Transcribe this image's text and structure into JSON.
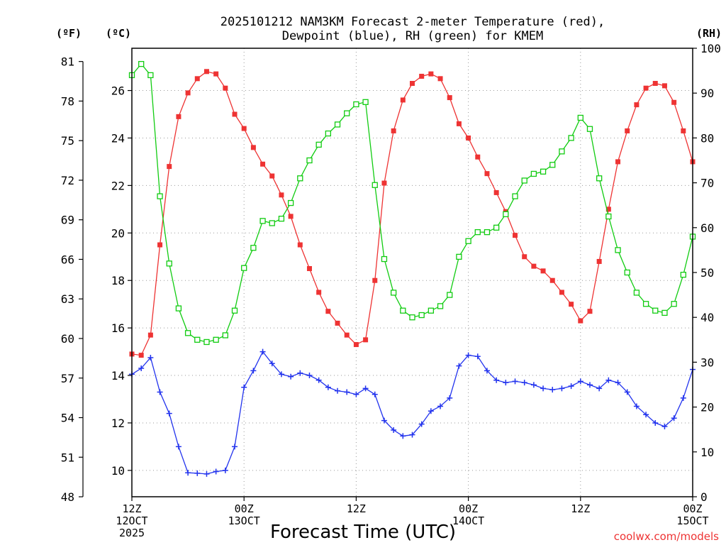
{
  "chart_data": {
    "type": "line",
    "title_lines": [
      "2025101212 NAM3KM Forecast 2-meter Temperature (red),",
      "Dewpoint (blue), RH (green) for KMEM"
    ],
    "units": {
      "fahrenheit": "(ºF)",
      "celsius": "(ºC)",
      "rh": "(RH)"
    },
    "xlabel": "Forecast Time (UTC)",
    "credit": "coolwx.com/models",
    "x_range_hours": [
      0,
      60
    ],
    "x_ticks": [
      {
        "hour": 0,
        "lines": [
          "12Z",
          "12OCT",
          "2025"
        ]
      },
      {
        "hour": 12,
        "lines": [
          "00Z",
          "13OCT"
        ]
      },
      {
        "hour": 24,
        "lines": [
          "12Z",
          ""
        ]
      },
      {
        "hour": 36,
        "lines": [
          "00Z",
          "14OCT"
        ]
      },
      {
        "hour": 48,
        "lines": [
          "12Z",
          ""
        ]
      },
      {
        "hour": 60,
        "lines": [
          "00Z",
          "15OCT"
        ]
      }
    ],
    "x_grid_hours": [
      12,
      24,
      36,
      48
    ],
    "y_celsius": {
      "min": 8.89,
      "max": 27.78,
      "ticks": [
        10,
        12,
        14,
        16,
        18,
        20,
        22,
        24,
        26
      ]
    },
    "y_fahrenheit_ticks": [
      48,
      51,
      54,
      57,
      60,
      63,
      66,
      69,
      72,
      75,
      78,
      81
    ],
    "y_rh": {
      "min": 0,
      "max": 100,
      "ticks": [
        0,
        10,
        20,
        30,
        40,
        50,
        60,
        70,
        80,
        90,
        100
      ]
    },
    "series": [
      {
        "name": "Temperature",
        "axis": "celsius",
        "color": "#ee3333",
        "marker": "filled-square",
        "values": [
          14.9,
          14.85,
          15.7,
          19.5,
          22.8,
          24.9,
          25.9,
          26.5,
          26.8,
          26.7,
          26.1,
          25.0,
          24.4,
          23.6,
          22.9,
          22.4,
          21.6,
          20.7,
          19.5,
          18.5,
          17.5,
          16.7,
          16.2,
          15.7,
          15.3,
          15.5,
          18.0,
          22.1,
          24.3,
          25.6,
          26.3,
          26.6,
          26.7,
          26.5,
          25.7,
          24.6,
          24.0,
          23.2,
          22.5,
          21.7,
          20.9,
          19.9,
          19.0,
          18.6,
          18.4,
          18.0,
          17.5,
          17.0,
          16.3,
          16.7,
          18.8,
          21.0,
          23.0,
          24.3,
          25.4,
          26.1,
          26.3,
          26.2,
          25.5,
          24.3,
          23.0
        ]
      },
      {
        "name": "Dewpoint",
        "axis": "celsius",
        "color": "#2233ee",
        "marker": "plus",
        "values": [
          14.05,
          14.3,
          14.75,
          13.3,
          12.4,
          11.0,
          9.9,
          9.88,
          9.85,
          9.95,
          10.0,
          11.0,
          13.5,
          14.2,
          15.0,
          14.5,
          14.05,
          13.95,
          14.1,
          14.0,
          13.8,
          13.5,
          13.35,
          13.3,
          13.2,
          13.45,
          13.2,
          12.1,
          11.7,
          11.45,
          11.5,
          11.95,
          12.5,
          12.7,
          13.05,
          14.4,
          14.85,
          14.8,
          14.2,
          13.8,
          13.7,
          13.75,
          13.7,
          13.6,
          13.45,
          13.4,
          13.45,
          13.55,
          13.75,
          13.6,
          13.45,
          13.8,
          13.7,
          13.3,
          12.7,
          12.35,
          12.0,
          11.85,
          12.2,
          13.05,
          14.25
        ]
      },
      {
        "name": "RH",
        "axis": "rh",
        "color": "#11cc11",
        "marker": "open-square",
        "values": [
          94,
          96.5,
          94,
          67,
          52,
          42,
          36.5,
          35,
          34.5,
          35,
          36,
          41.5,
          51,
          55.5,
          61.5,
          61,
          62,
          65.5,
          71,
          75,
          78.5,
          81,
          83,
          85.5,
          87.5,
          88,
          69.5,
          53,
          45.5,
          41.5,
          40,
          40.5,
          41.5,
          42.5,
          45,
          53.5,
          57,
          59,
          59,
          60,
          63,
          67,
          70.5,
          72,
          72.5,
          74,
          77,
          80,
          84.5,
          82,
          71,
          62.5,
          55,
          50,
          45.5,
          43,
          41.5,
          41,
          43,
          49.5,
          58
        ]
      }
    ]
  }
}
